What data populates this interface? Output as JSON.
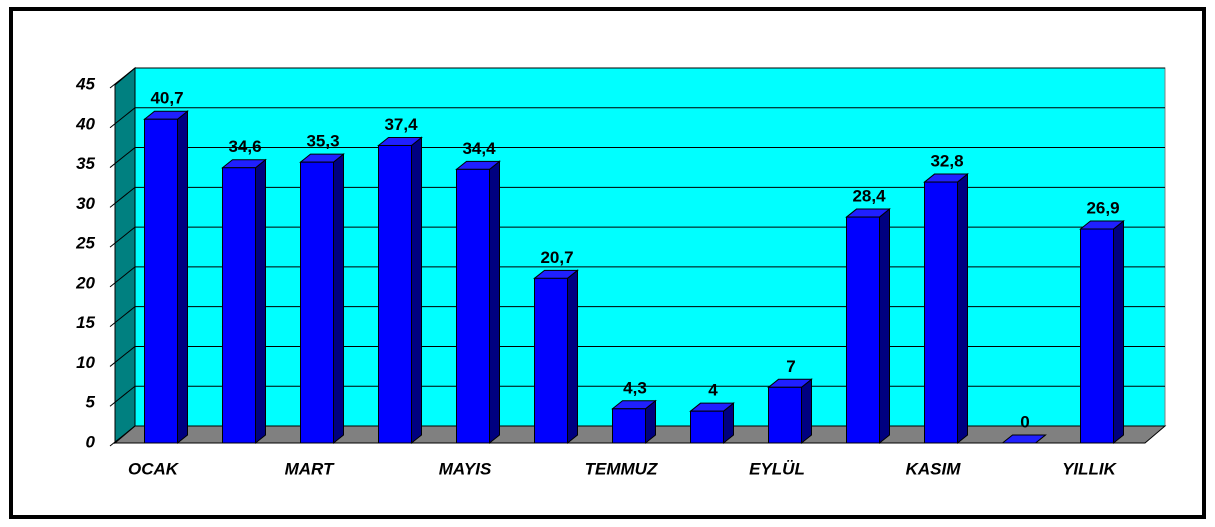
{
  "chart_data": {
    "type": "bar",
    "categories": [
      "OCAK",
      null,
      "MART",
      null,
      "MAYIS",
      null,
      "TEMMUZ",
      null,
      "EYLÜL",
      null,
      "KASIM",
      null,
      "YILLIK"
    ],
    "values": [
      40.7,
      34.6,
      35.3,
      37.4,
      34.4,
      20.7,
      4.3,
      4,
      7,
      28.4,
      32.8,
      0,
      26.9
    ],
    "value_labels": [
      "40,7",
      "34,6",
      "35,3",
      "37,4",
      "34,4",
      "20,7",
      "4,3",
      "4",
      "7",
      "28,4",
      "32,8",
      "0",
      "26,9"
    ],
    "color": "#0000ff",
    "ylim": [
      0,
      45
    ],
    "yticks": [
      0,
      5,
      10,
      15,
      20,
      25,
      30,
      35,
      40,
      45
    ],
    "grid": true
  }
}
